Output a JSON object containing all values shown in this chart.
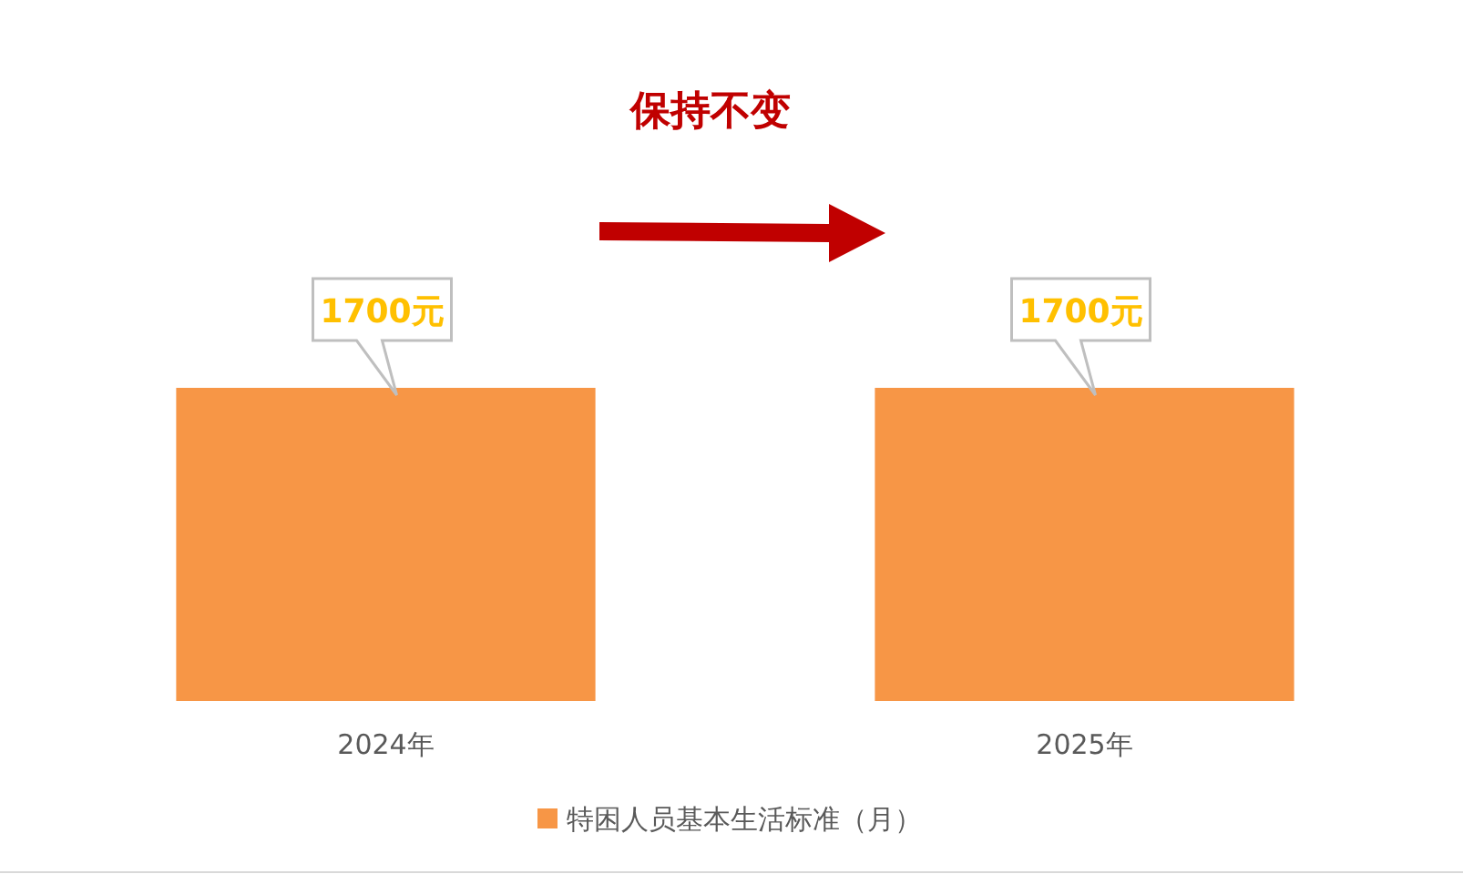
{
  "chart_data": {
    "type": "bar",
    "categories": [
      "2024年",
      "2025年"
    ],
    "series": [
      {
        "name": "特困人员基本生活标准（月）",
        "color": "#f79646",
        "values": [
          1700,
          1700
        ],
        "value_labels": [
          "1700元",
          "1700元"
        ]
      }
    ],
    "annotations": [
      "保持不变"
    ],
    "legend": "bottom"
  }
}
